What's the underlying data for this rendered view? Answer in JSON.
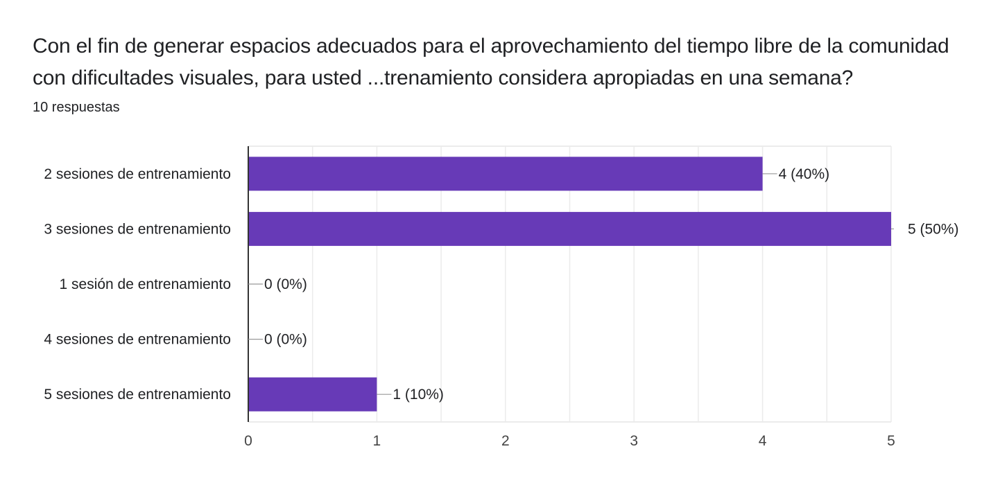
{
  "question": {
    "title": "Con el fin de generar espacios adecuados para el aprovechamiento del tiempo libre de la comunidad con dificultades visuales, para usted ...trenamiento considera apropiadas en una semana?",
    "response_count": "10 respuestas"
  },
  "colors": {
    "bar": "#673ab7",
    "grid": "#ebebeb",
    "axis": "#333333",
    "leader": "#999999"
  },
  "chart_data": {
    "type": "bar",
    "orientation": "horizontal",
    "title": "",
    "xlabel": "",
    "ylabel": "",
    "categories": [
      "2 sesiones de entrenamiento",
      "3 sesiones de entrenamiento",
      "1 sesión de entrenamiento",
      "4 sesiones de entrenamiento",
      "5 sesiones de entrenamiento"
    ],
    "values": [
      4,
      5,
      0,
      0,
      1
    ],
    "data_labels": [
      "4 (40%)",
      "5 (50%)",
      "0 (0%)",
      "0 (0%)",
      "1 (10%)"
    ],
    "xlim": [
      0,
      5
    ],
    "x_ticks": [
      0,
      1,
      2,
      3,
      4,
      5
    ],
    "grid": true,
    "legend": "none"
  }
}
